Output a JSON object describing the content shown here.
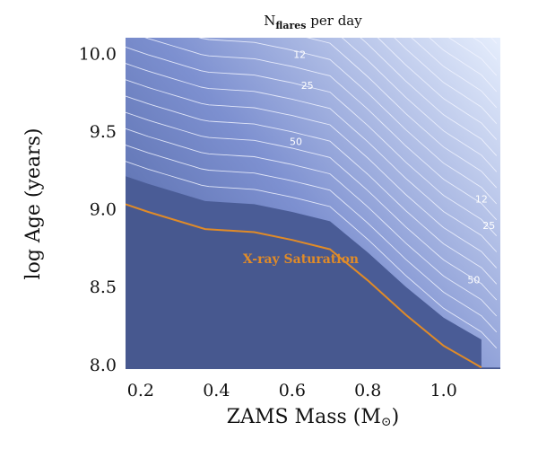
{
  "chart_data": {
    "type": "area",
    "title": {
      "main": "N",
      "sub": "flares",
      "rest": " per day"
    },
    "xlabel": "ZAMS Mass (M",
    "xlabel_suffix": ")",
    "ylabel": "log Age (years)",
    "xlim": [
      0.16,
      1.15
    ],
    "ylim": [
      7.97,
      10.1
    ],
    "xticks": [
      0.2,
      0.4,
      0.6,
      0.8,
      1.0
    ],
    "xtick_labels": [
      "0.2",
      "0.4",
      "0.6",
      "0.8",
      "1.0"
    ],
    "yticks": [
      8.0,
      8.5,
      9.0,
      9.5,
      10.0
    ],
    "ytick_labels": [
      "8.0",
      "8.5",
      "9.0",
      "9.5",
      "10.0"
    ],
    "grid": false,
    "colors": {
      "saturated": "#47588f",
      "low": "#4e63a1",
      "high": "#e7effd",
      "contour": "#f2f5ff",
      "saturation_line": "#e08b28"
    },
    "saturation_curve": {
      "name": "X-ray Saturation",
      "x": [
        0.16,
        0.22,
        0.37,
        0.5,
        0.6,
        0.7,
        0.8,
        0.9,
        1.0,
        1.1
      ],
      "y": [
        9.03,
        8.98,
        8.87,
        8.85,
        8.8,
        8.74,
        8.54,
        8.32,
        8.12,
        7.98
      ]
    },
    "contour_labels": [
      {
        "text": "12",
        "x": 0.62,
        "y": 9.97
      },
      {
        "text": "25",
        "x": 0.64,
        "y": 9.77
      },
      {
        "text": "50",
        "x": 0.61,
        "y": 9.41
      },
      {
        "text": "12",
        "x": 1.1,
        "y": 9.04
      },
      {
        "text": "25",
        "x": 1.12,
        "y": 8.87
      },
      {
        "text": "50",
        "x": 1.08,
        "y": 8.52
      }
    ],
    "annotation": {
      "text": "X-ray Saturation",
      "x": 0.47,
      "y": 8.65
    }
  }
}
